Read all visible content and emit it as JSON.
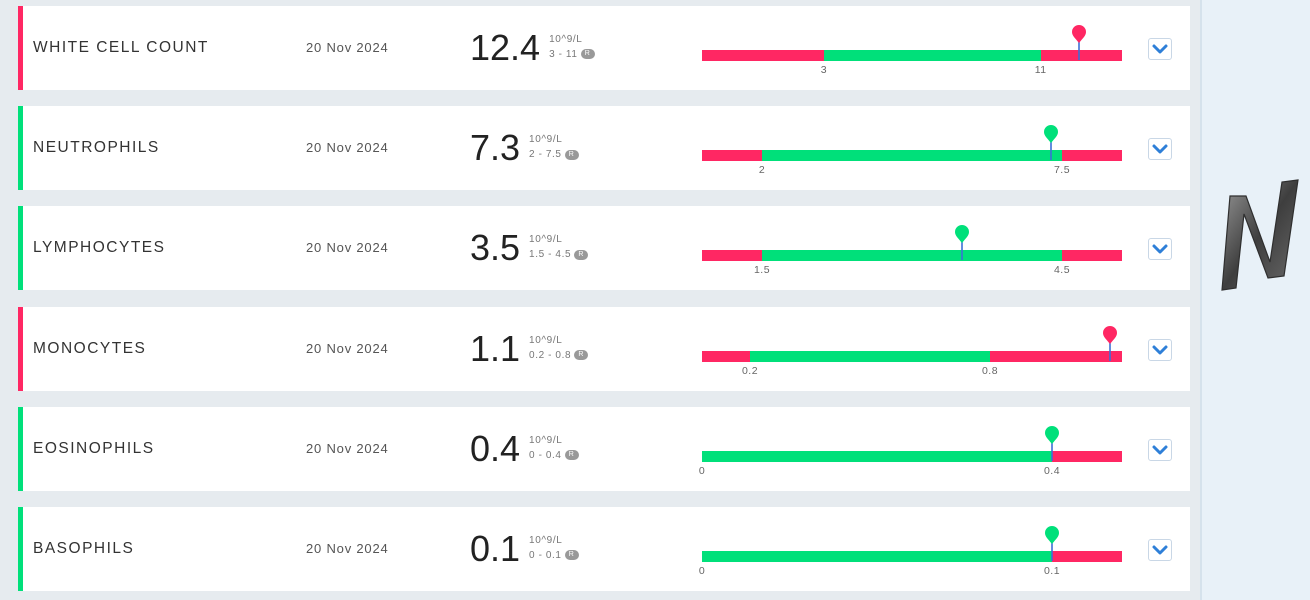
{
  "colors": {
    "normal": "#00e07a",
    "abnormal": "#ff2763",
    "pin_stem": "#3c6fd6",
    "chevron": "#2e7fd8"
  },
  "results": [
    {
      "name": "WHITE CELL COUNT",
      "date": "20 Nov 2024",
      "value": "12.4",
      "unit": "10^9/L",
      "range": "3 - 11",
      "badge": "R",
      "status": "abnormal",
      "low": 3,
      "high": 11,
      "low_label": "3",
      "high_label": "11",
      "scale_min": -1.5,
      "scale_max": 14,
      "value_num": 12.4,
      "pin": "pin-icon-red"
    },
    {
      "name": "NEUTROPHILS",
      "date": "20 Nov 2024",
      "value": "7.3",
      "unit": "10^9/L",
      "range": "2 - 7.5",
      "badge": "R",
      "status": "normal",
      "low": 2,
      "high": 7.5,
      "low_label": "2",
      "high_label": "7.5",
      "scale_min": 0.9,
      "scale_max": 8.6,
      "value_num": 7.3,
      "pin": "pin-icon-green"
    },
    {
      "name": "LYMPHOCYTES",
      "date": "20 Nov 2024",
      "value": "3.5",
      "unit": "10^9/L",
      "range": "1.5 - 4.5",
      "badge": "R",
      "status": "normal",
      "low": 1.5,
      "high": 4.5,
      "low_label": "1.5",
      "high_label": "4.5",
      "scale_min": 0.9,
      "scale_max": 5.1,
      "value_num": 3.5,
      "pin": "pin-icon-green"
    },
    {
      "name": "MONOCYTES",
      "date": "20 Nov 2024",
      "value": "1.1",
      "unit": "10^9/L",
      "range": "0.2 - 0.8",
      "badge": "R",
      "status": "abnormal",
      "low": 0.2,
      "high": 0.8,
      "low_label": "0.2",
      "high_label": "0.8",
      "scale_min": 0.08,
      "scale_max": 1.13,
      "value_num": 1.1,
      "pin": "pin-icon-red"
    },
    {
      "name": "EOSINOPHILS",
      "date": "20 Nov 2024",
      "value": "0.4",
      "unit": "10^9/L",
      "range": "0 - 0.4",
      "badge": "R",
      "status": "normal",
      "low": 0,
      "high": 0.4,
      "low_label": "0",
      "high_label": "0.4",
      "scale_min": 0,
      "scale_max": 0.48,
      "value_num": 0.4,
      "pin": "pin-icon-green"
    },
    {
      "name": "BASOPHILS",
      "date": "20 Nov 2024",
      "value": "0.1",
      "unit": "10^9/L",
      "range": "0 - 0.1",
      "badge": "R",
      "status": "normal",
      "low": 0,
      "high": 0.1,
      "low_label": "0",
      "high_label": "0.1",
      "scale_min": 0,
      "scale_max": 0.12,
      "value_num": 0.1,
      "pin": "pin-icon-green"
    }
  ],
  "sidebar": {
    "logo": "N"
  }
}
